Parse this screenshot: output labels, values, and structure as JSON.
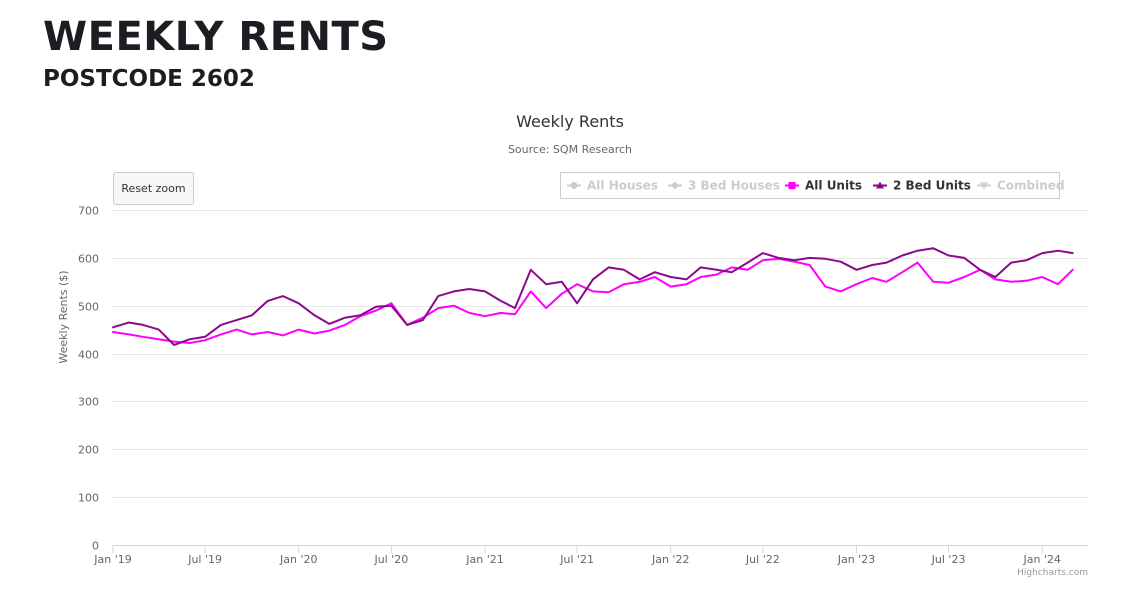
{
  "page": {
    "title": "WEEKLY RENTS",
    "subtitle": "POSTCODE 2602"
  },
  "chart": {
    "reset_zoom_label": "Reset zoom",
    "credits": "Highcharts.com",
    "colors": {
      "all_units": "#ff00ff",
      "two_bed_units": "#8b0a8c",
      "hidden": "#cccccc",
      "grid": "#e6e6e6",
      "axis_text": "#666666"
    }
  },
  "chart_data": {
    "type": "line",
    "title": "Weekly Rents",
    "subtitle": "Source: SQM Research",
    "ylabel": "Weekly Rents ($)",
    "xlabel": "",
    "ylim": [
      0,
      700
    ],
    "yticks": [
      0,
      100,
      200,
      300,
      400,
      500,
      600,
      700
    ],
    "xlim": [
      "2019-01-01",
      "2024-03-31"
    ],
    "xticks": [
      "Jan '19",
      "Jul '19",
      "Jan '20",
      "Jul '20",
      "Jan '21",
      "Jul '21",
      "Jan '22",
      "Jul '22",
      "Jan '23",
      "Jul '23",
      "Jan '24"
    ],
    "grid": true,
    "legend_position": "top-right",
    "legend": [
      {
        "name": "All Houses",
        "visible": false,
        "marker": "circle"
      },
      {
        "name": "3 Bed Houses",
        "visible": false,
        "marker": "diamond"
      },
      {
        "name": "All Units",
        "visible": true,
        "marker": "square"
      },
      {
        "name": "2 Bed Units",
        "visible": true,
        "marker": "triangle"
      },
      {
        "name": "Combined",
        "visible": false,
        "marker": "triangle-down"
      }
    ],
    "x": [
      "2019-01",
      "2019-02",
      "2019-03",
      "2019-04",
      "2019-05",
      "2019-06",
      "2019-07",
      "2019-08",
      "2019-09",
      "2019-10",
      "2019-11",
      "2019-12",
      "2020-01",
      "2020-02",
      "2020-03",
      "2020-04",
      "2020-05",
      "2020-06",
      "2020-07",
      "2020-08",
      "2020-09",
      "2020-10",
      "2020-11",
      "2020-12",
      "2021-01",
      "2021-02",
      "2021-03",
      "2021-04",
      "2021-05",
      "2021-06",
      "2021-07",
      "2021-08",
      "2021-09",
      "2021-10",
      "2021-11",
      "2021-12",
      "2022-01",
      "2022-02",
      "2022-03",
      "2022-04",
      "2022-05",
      "2022-06",
      "2022-07",
      "2022-08",
      "2022-09",
      "2022-10",
      "2022-11",
      "2022-12",
      "2023-01",
      "2023-02",
      "2023-03",
      "2023-04",
      "2023-05",
      "2023-06",
      "2023-07",
      "2023-08",
      "2023-09",
      "2023-10",
      "2023-11",
      "2023-12",
      "2024-01",
      "2024-02",
      "2024-03"
    ],
    "series": [
      {
        "name": "All Units",
        "values": [
          445,
          440,
          435,
          430,
          425,
          422,
          428,
          440,
          450,
          440,
          445,
          438,
          450,
          442,
          448,
          460,
          478,
          490,
          505,
          460,
          475,
          495,
          500,
          485,
          478,
          485,
          482,
          530,
          495,
          525,
          545,
          530,
          528,
          545,
          550,
          560,
          540,
          545,
          560,
          565,
          580,
          575,
          595,
          598,
          592,
          585,
          540,
          530,
          545,
          558,
          550,
          570,
          590,
          550,
          548,
          560,
          575,
          555,
          550,
          552,
          560,
          545,
          575
        ]
      },
      {
        "name": "2 Bed Units",
        "values": [
          455,
          465,
          460,
          450,
          418,
          430,
          435,
          460,
          470,
          480,
          510,
          520,
          505,
          480,
          462,
          475,
          480,
          498,
          500,
          460,
          470,
          520,
          530,
          535,
          530,
          510,
          495,
          575,
          545,
          550,
          505,
          555,
          580,
          575,
          555,
          570,
          560,
          555,
          580,
          575,
          570,
          590,
          610,
          600,
          595,
          600,
          598,
          592,
          575,
          585,
          590,
          605,
          615,
          620,
          605,
          600,
          575,
          560,
          590,
          595,
          610,
          615,
          610
        ]
      }
    ]
  }
}
